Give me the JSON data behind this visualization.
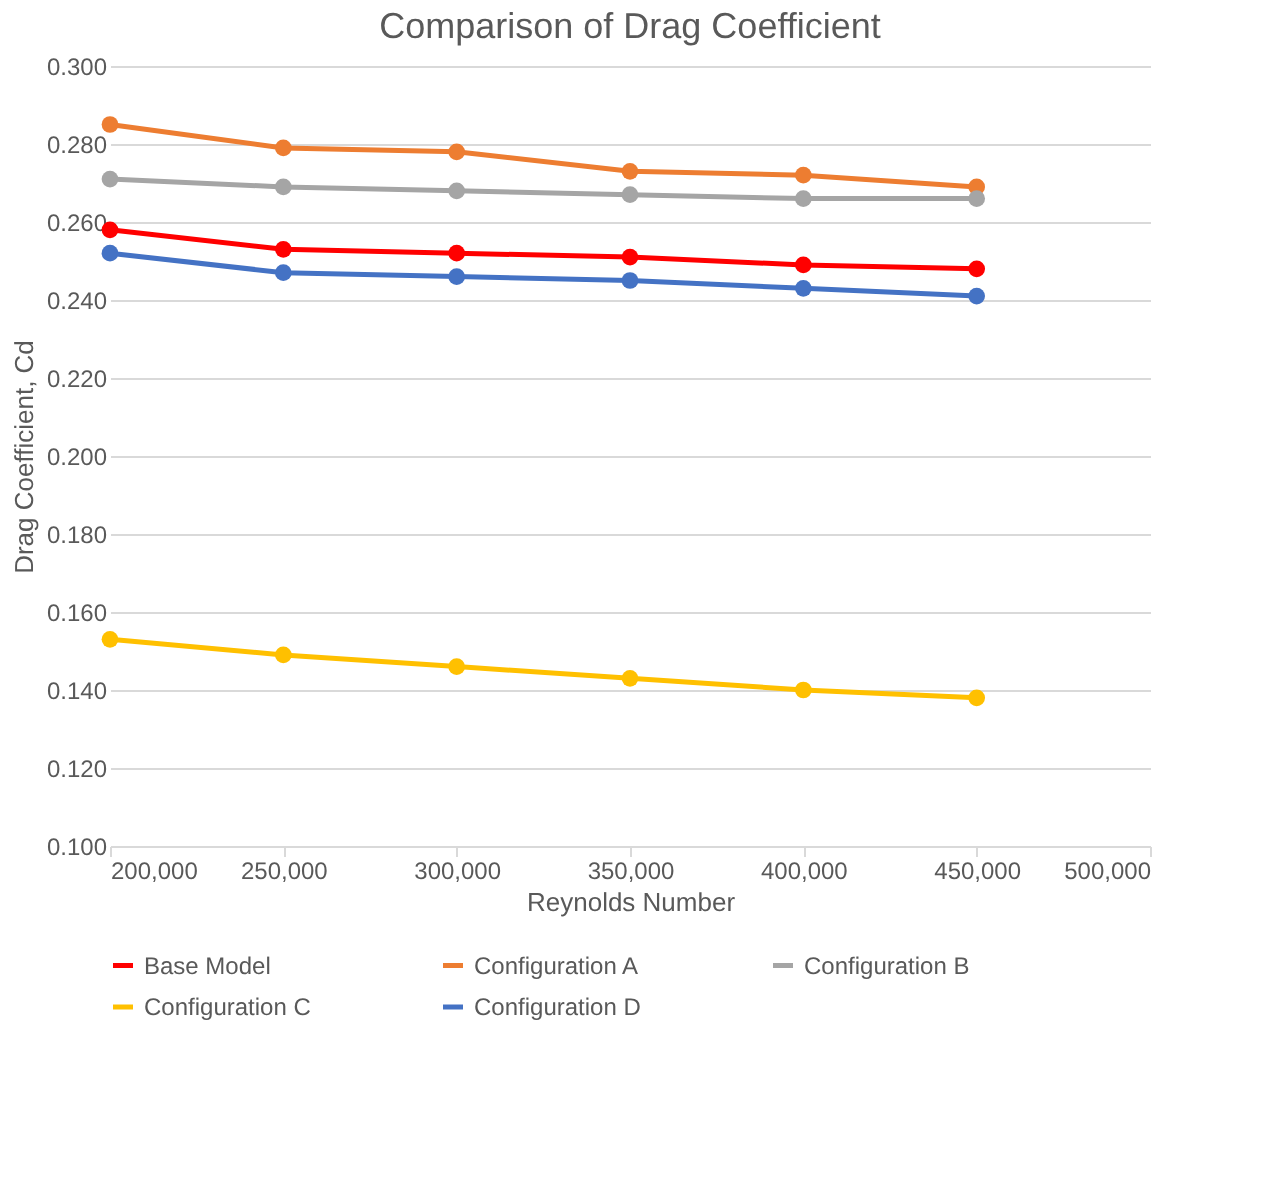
{
  "chart_data": {
    "type": "line",
    "title": "Comparison of Drag Coefficient",
    "xlabel": "Reynolds Number",
    "ylabel": "Drag Coefficient, Cd",
    "x": [
      200000,
      250000,
      300000,
      350000,
      400000,
      450000
    ],
    "series": [
      {
        "name": "Base Model",
        "color": "#ff0000",
        "values": [
          0.258,
          0.253,
          0.252,
          0.251,
          0.249,
          0.248
        ]
      },
      {
        "name": "Configuration A",
        "color": "#ed7d31",
        "values": [
          0.285,
          0.279,
          0.278,
          0.273,
          0.272,
          0.269
        ]
      },
      {
        "name": "Configuration B",
        "color": "#a5a5a5",
        "values": [
          0.271,
          0.269,
          0.268,
          0.267,
          0.266,
          0.266
        ]
      },
      {
        "name": "Configuration C",
        "color": "#ffc000",
        "values": [
          0.153,
          0.149,
          0.146,
          0.143,
          0.14,
          0.138
        ]
      },
      {
        "name": "Configuration D",
        "color": "#4472c4",
        "values": [
          0.252,
          0.247,
          0.246,
          0.245,
          0.243,
          0.241
        ]
      }
    ],
    "xlim": [
      200000,
      500000
    ],
    "xticks": [
      {
        "value": 200000,
        "label": "200,000"
      },
      {
        "value": 250000,
        "label": "250,000"
      },
      {
        "value": 300000,
        "label": "300,000"
      },
      {
        "value": 350000,
        "label": "350,000"
      },
      {
        "value": 400000,
        "label": "400,000"
      },
      {
        "value": 450000,
        "label": "450,000"
      },
      {
        "value": 500000,
        "label": "500,000"
      }
    ],
    "ylim": [
      0.1,
      0.3
    ],
    "yticks": [
      {
        "value": 0.1,
        "label": "0.100"
      },
      {
        "value": 0.12,
        "label": "0.120"
      },
      {
        "value": 0.14,
        "label": "0.140"
      },
      {
        "value": 0.16,
        "label": "0.160"
      },
      {
        "value": 0.18,
        "label": "0.180"
      },
      {
        "value": 0.2,
        "label": "0.200"
      },
      {
        "value": 0.22,
        "label": "0.220"
      },
      {
        "value": 0.24,
        "label": "0.240"
      },
      {
        "value": 0.26,
        "label": "0.260"
      },
      {
        "value": 0.28,
        "label": "0.280"
      },
      {
        "value": 0.3,
        "label": "0.300"
      }
    ],
    "grid": "y",
    "legend": "bottom",
    "marker": "circle",
    "line_style": "solid"
  }
}
